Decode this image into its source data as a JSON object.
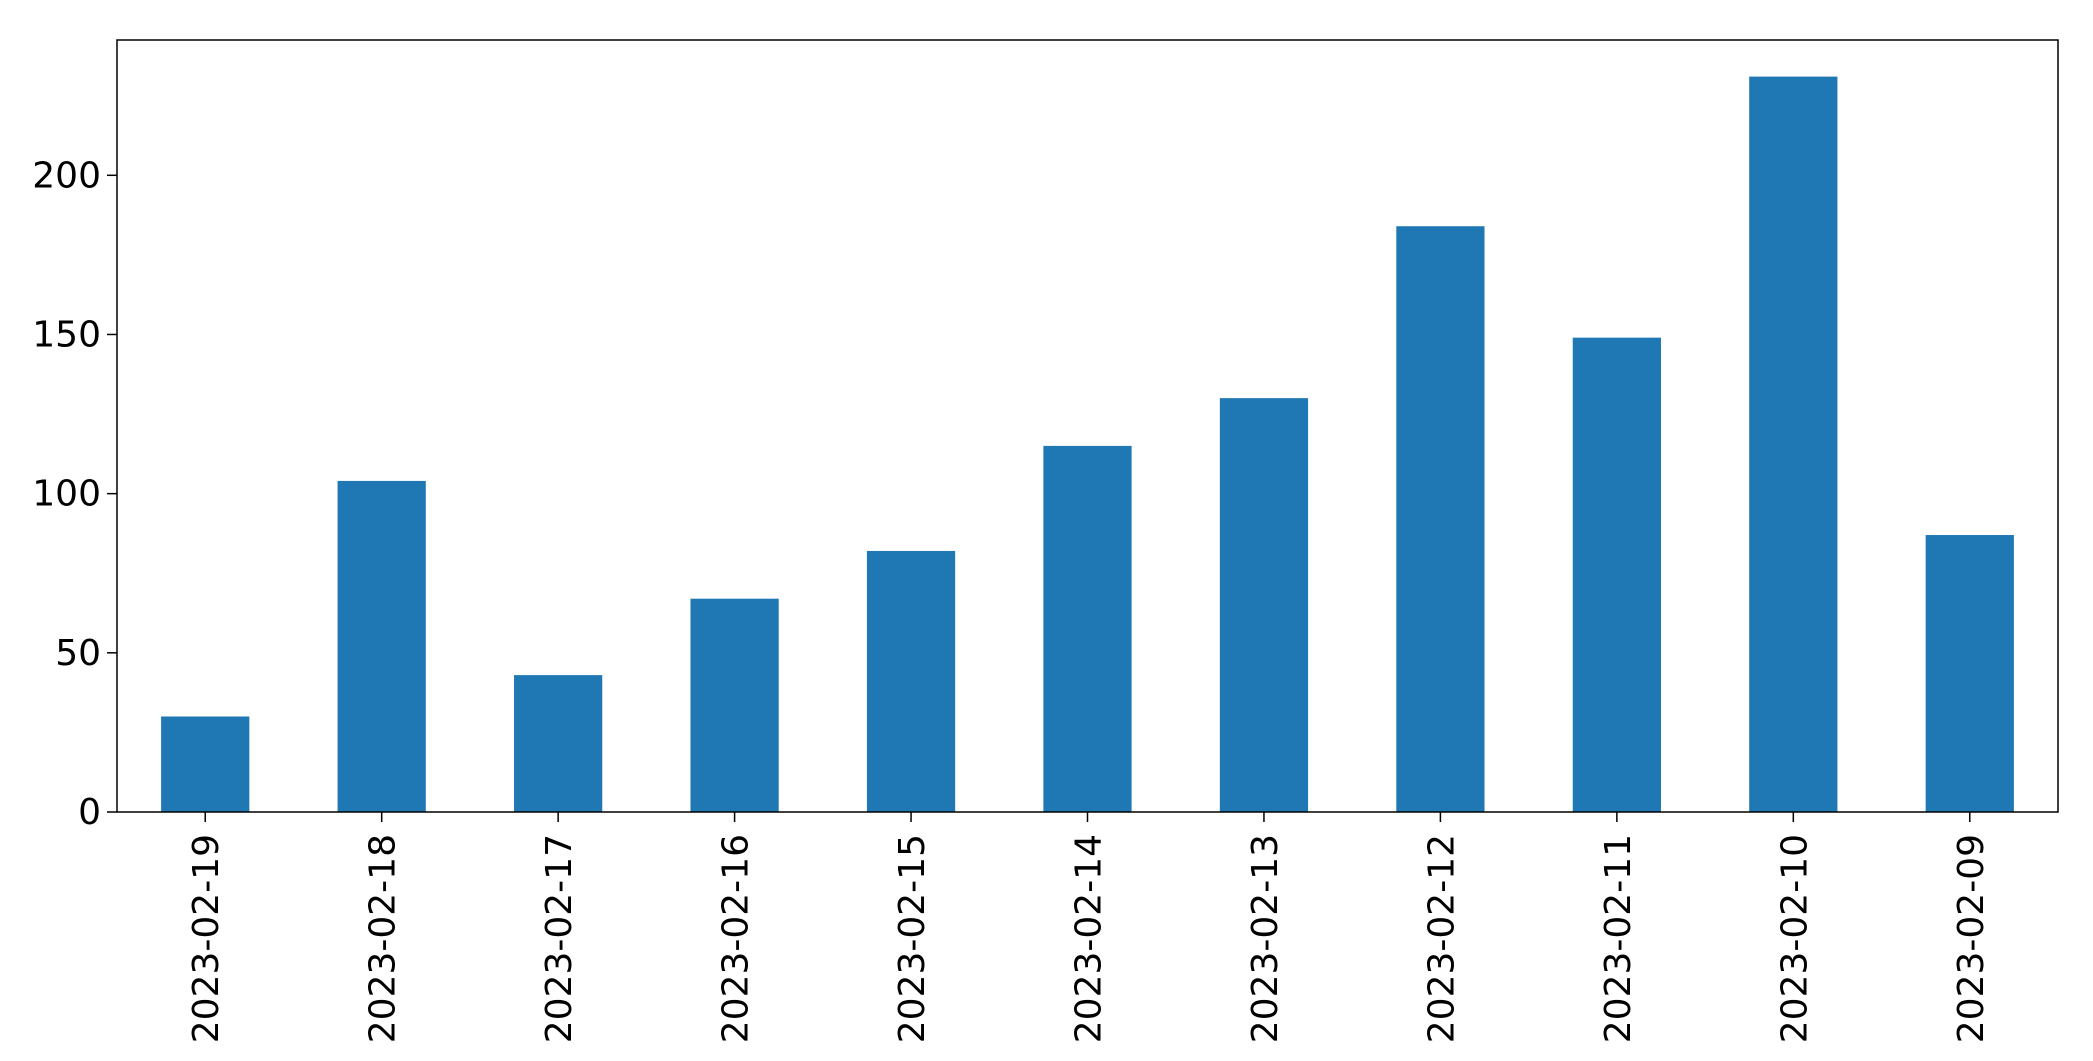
{
  "chart_data": {
    "type": "bar",
    "title": "",
    "xlabel": "",
    "ylabel": "",
    "categories": [
      "2023-02-19",
      "2023-02-18",
      "2023-02-17",
      "2023-02-16",
      "2023-02-15",
      "2023-02-14",
      "2023-02-13",
      "2023-02-12",
      "2023-02-11",
      "2023-02-10",
      "2023-02-09"
    ],
    "values": [
      30,
      104,
      43,
      67,
      82,
      115,
      130,
      184,
      149,
      231,
      87
    ],
    "ylim": [
      0,
      242.5
    ],
    "yticks": [
      0,
      50,
      100,
      150,
      200
    ],
    "grid": false,
    "legend": "none",
    "colors": {
      "bar": "#1f77b4",
      "axis": "#000000"
    }
  }
}
